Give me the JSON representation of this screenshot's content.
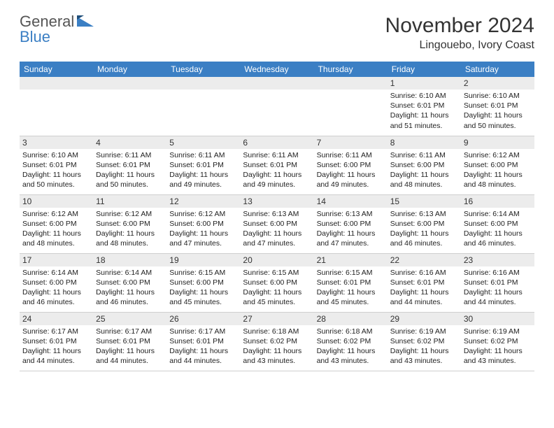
{
  "logo": {
    "line1": "General",
    "line2": "Blue"
  },
  "title": "November 2024",
  "location": "Lingouebo, Ivory Coast",
  "colors": {
    "header_bg": "#3b7fc4",
    "header_text": "#ffffff",
    "daynum_bg": "#ececec",
    "border": "#cfcfcf",
    "text": "#333333"
  },
  "columns": [
    "Sunday",
    "Monday",
    "Tuesday",
    "Wednesday",
    "Thursday",
    "Friday",
    "Saturday"
  ],
  "weeks": [
    [
      null,
      null,
      null,
      null,
      null,
      {
        "n": "1",
        "sr": "6:10 AM",
        "ss": "6:01 PM",
        "dl": "11 hours and 51 minutes."
      },
      {
        "n": "2",
        "sr": "6:10 AM",
        "ss": "6:01 PM",
        "dl": "11 hours and 50 minutes."
      }
    ],
    [
      {
        "n": "3",
        "sr": "6:10 AM",
        "ss": "6:01 PM",
        "dl": "11 hours and 50 minutes."
      },
      {
        "n": "4",
        "sr": "6:11 AM",
        "ss": "6:01 PM",
        "dl": "11 hours and 50 minutes."
      },
      {
        "n": "5",
        "sr": "6:11 AM",
        "ss": "6:01 PM",
        "dl": "11 hours and 49 minutes."
      },
      {
        "n": "6",
        "sr": "6:11 AM",
        "ss": "6:01 PM",
        "dl": "11 hours and 49 minutes."
      },
      {
        "n": "7",
        "sr": "6:11 AM",
        "ss": "6:00 PM",
        "dl": "11 hours and 49 minutes."
      },
      {
        "n": "8",
        "sr": "6:11 AM",
        "ss": "6:00 PM",
        "dl": "11 hours and 48 minutes."
      },
      {
        "n": "9",
        "sr": "6:12 AM",
        "ss": "6:00 PM",
        "dl": "11 hours and 48 minutes."
      }
    ],
    [
      {
        "n": "10",
        "sr": "6:12 AM",
        "ss": "6:00 PM",
        "dl": "11 hours and 48 minutes."
      },
      {
        "n": "11",
        "sr": "6:12 AM",
        "ss": "6:00 PM",
        "dl": "11 hours and 48 minutes."
      },
      {
        "n": "12",
        "sr": "6:12 AM",
        "ss": "6:00 PM",
        "dl": "11 hours and 47 minutes."
      },
      {
        "n": "13",
        "sr": "6:13 AM",
        "ss": "6:00 PM",
        "dl": "11 hours and 47 minutes."
      },
      {
        "n": "14",
        "sr": "6:13 AM",
        "ss": "6:00 PM",
        "dl": "11 hours and 47 minutes."
      },
      {
        "n": "15",
        "sr": "6:13 AM",
        "ss": "6:00 PM",
        "dl": "11 hours and 46 minutes."
      },
      {
        "n": "16",
        "sr": "6:14 AM",
        "ss": "6:00 PM",
        "dl": "11 hours and 46 minutes."
      }
    ],
    [
      {
        "n": "17",
        "sr": "6:14 AM",
        "ss": "6:00 PM",
        "dl": "11 hours and 46 minutes."
      },
      {
        "n": "18",
        "sr": "6:14 AM",
        "ss": "6:00 PM",
        "dl": "11 hours and 46 minutes."
      },
      {
        "n": "19",
        "sr": "6:15 AM",
        "ss": "6:00 PM",
        "dl": "11 hours and 45 minutes."
      },
      {
        "n": "20",
        "sr": "6:15 AM",
        "ss": "6:00 PM",
        "dl": "11 hours and 45 minutes."
      },
      {
        "n": "21",
        "sr": "6:15 AM",
        "ss": "6:01 PM",
        "dl": "11 hours and 45 minutes."
      },
      {
        "n": "22",
        "sr": "6:16 AM",
        "ss": "6:01 PM",
        "dl": "11 hours and 44 minutes."
      },
      {
        "n": "23",
        "sr": "6:16 AM",
        "ss": "6:01 PM",
        "dl": "11 hours and 44 minutes."
      }
    ],
    [
      {
        "n": "24",
        "sr": "6:17 AM",
        "ss": "6:01 PM",
        "dl": "11 hours and 44 minutes."
      },
      {
        "n": "25",
        "sr": "6:17 AM",
        "ss": "6:01 PM",
        "dl": "11 hours and 44 minutes."
      },
      {
        "n": "26",
        "sr": "6:17 AM",
        "ss": "6:01 PM",
        "dl": "11 hours and 44 minutes."
      },
      {
        "n": "27",
        "sr": "6:18 AM",
        "ss": "6:02 PM",
        "dl": "11 hours and 43 minutes."
      },
      {
        "n": "28",
        "sr": "6:18 AM",
        "ss": "6:02 PM",
        "dl": "11 hours and 43 minutes."
      },
      {
        "n": "29",
        "sr": "6:19 AM",
        "ss": "6:02 PM",
        "dl": "11 hours and 43 minutes."
      },
      {
        "n": "30",
        "sr": "6:19 AM",
        "ss": "6:02 PM",
        "dl": "11 hours and 43 minutes."
      }
    ]
  ],
  "labels": {
    "sunrise": "Sunrise: ",
    "sunset": "Sunset: ",
    "daylight": "Daylight: "
  }
}
